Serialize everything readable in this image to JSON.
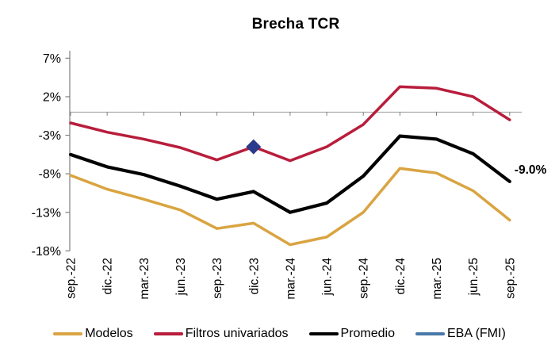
{
  "chart_data": {
    "type": "line",
    "title": "Brecha TCR",
    "categories": [
      "sep.-22",
      "dic.-22",
      "mar.-23",
      "jun.-23",
      "sep.-23",
      "dic.-23",
      "mar.-24",
      "jun.-24",
      "sep.-24",
      "dic.-24",
      "mar.-25",
      "jun.-25",
      "sep.-25"
    ],
    "series": [
      {
        "name": "Modelos",
        "style": "line",
        "color": "#D9A441",
        "values": [
          -8.2,
          -10.0,
          -11.3,
          -12.7,
          -15.1,
          -14.4,
          -17.2,
          -16.2,
          -13.0,
          -7.3,
          -7.9,
          -10.2,
          -14.0
        ]
      },
      {
        "name": "Filtros univariados",
        "style": "line",
        "color": "#B81D3B",
        "values": [
          -1.4,
          -2.6,
          -3.5,
          -4.6,
          -6.2,
          -4.5,
          -6.3,
          -4.5,
          -1.6,
          3.3,
          3.1,
          2.0,
          -1.0
        ]
      },
      {
        "name": "Promedio",
        "style": "line",
        "color": "#000000",
        "values": [
          -5.5,
          -7.1,
          -8.1,
          -9.6,
          -11.3,
          -10.3,
          -13.0,
          -11.8,
          -8.3,
          -3.1,
          -3.5,
          -5.4,
          -9.0
        ]
      },
      {
        "name": "EBA (FMI)",
        "style": "diamond",
        "color": "#4878A8",
        "marker_color": "#2B3A8C",
        "values": [
          null,
          null,
          null,
          null,
          null,
          -4.5,
          null,
          null,
          null,
          null,
          null,
          null,
          null
        ]
      }
    ],
    "y_ticks": [
      7,
      2,
      -3,
      -8,
      -13,
      -18
    ],
    "y_tick_labels": [
      "7%",
      "2%",
      "-3%",
      "-8%",
      "-13%",
      "-18%"
    ],
    "ylim": [
      -18,
      7
    ],
    "xlabel": "",
    "ylabel": "",
    "grid": false,
    "zero_line": true,
    "zero_line_color": "#A6A6A6",
    "axis_color": "#808080",
    "legend_position": "bottom",
    "annotation": {
      "text": "-9.0%",
      "series": "Promedio",
      "category": "sep.-25"
    }
  }
}
